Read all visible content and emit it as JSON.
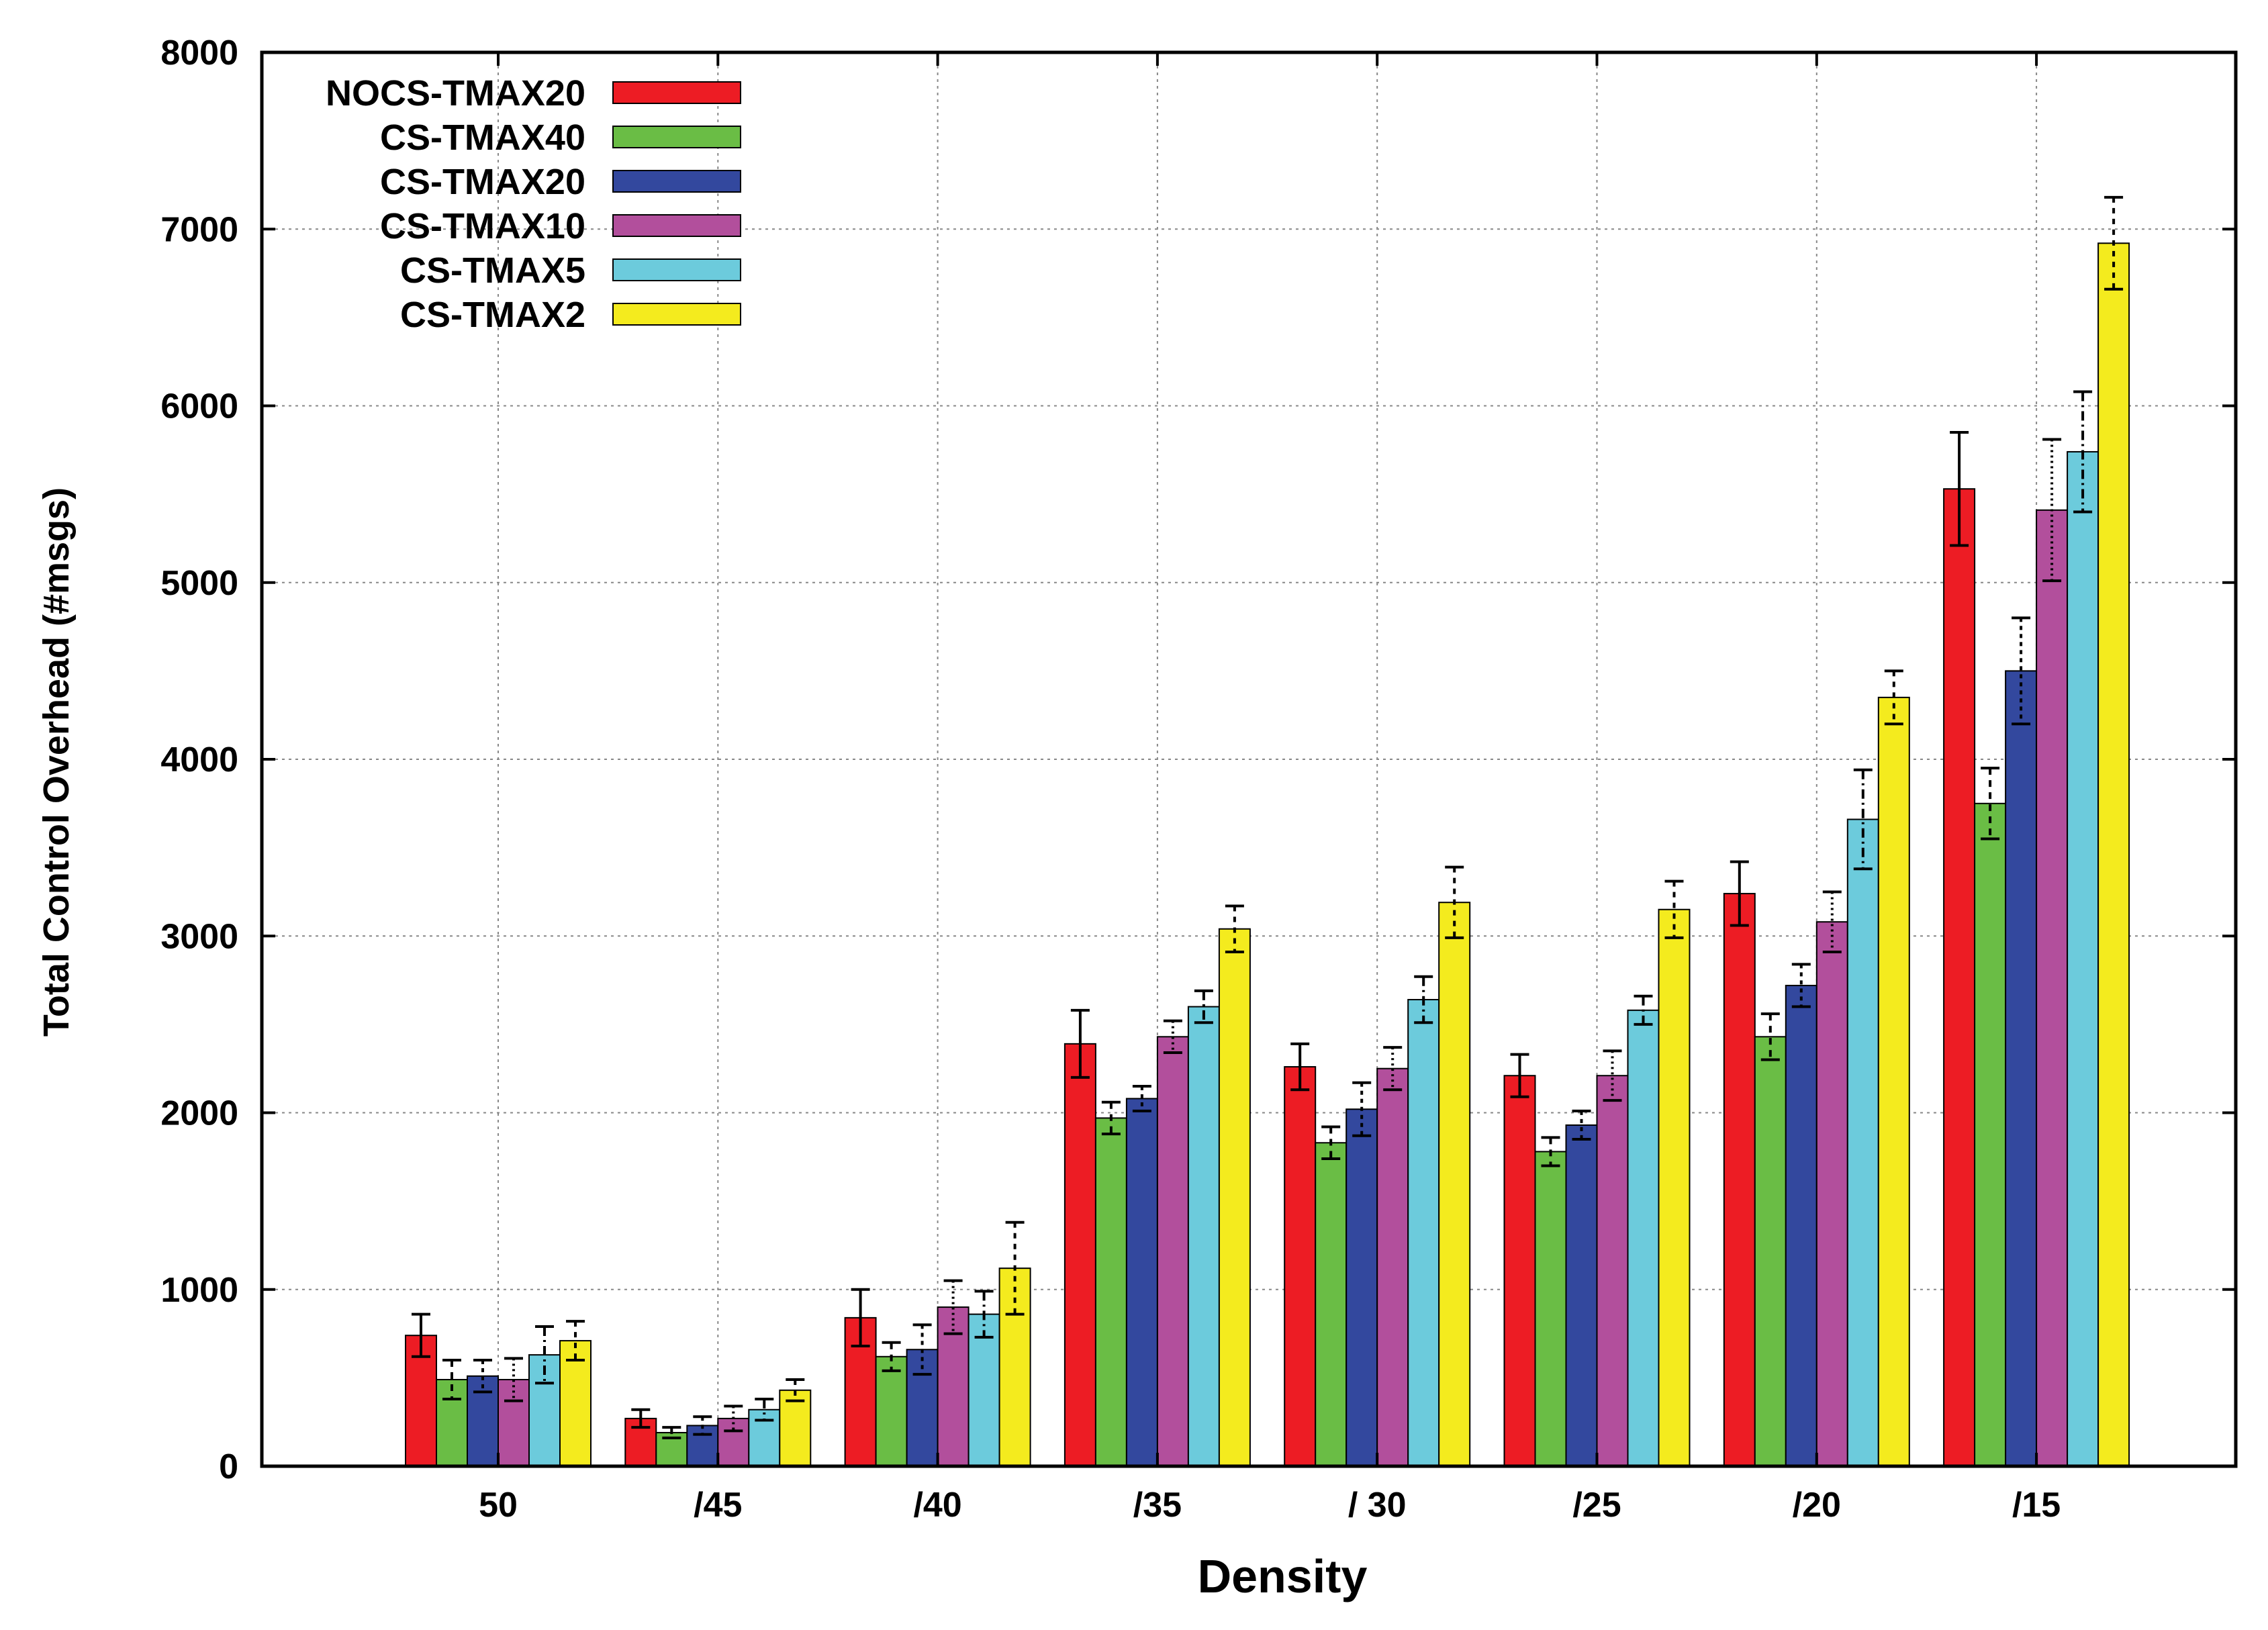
{
  "chart_data": {
    "type": "bar",
    "title": "",
    "xlabel": "Density",
    "ylabel": "Total Control Overhead (#msgs)",
    "ylim": [
      0,
      8000
    ],
    "yticks": [
      0,
      1000,
      2000,
      3000,
      4000,
      5000,
      6000,
      7000,
      8000
    ],
    "ytick_labels": [
      "0",
      "1000",
      "2000",
      "3000",
      "4000",
      "5000",
      "6000",
      "7000",
      "8000"
    ],
    "categories": [
      "50",
      "/45",
      "/40",
      "/35",
      "/ 30",
      "/25",
      "/20",
      "/15"
    ],
    "grid": true,
    "legend_position": "top-left",
    "series": [
      {
        "name": "NOCS-TMAX20",
        "color": "#ed1c24",
        "values": [
          740,
          270,
          840,
          2390,
          2260,
          2210,
          3240,
          5530
        ],
        "errors": [
          120,
          50,
          160,
          190,
          130,
          120,
          180,
          320
        ]
      },
      {
        "name": "CS-TMAX40",
        "color": "#6abd45",
        "values": [
          490,
          190,
          620,
          1970,
          1830,
          1780,
          2430,
          3750
        ],
        "errors": [
          110,
          30,
          80,
          90,
          90,
          80,
          130,
          200
        ]
      },
      {
        "name": "CS-TMAX20",
        "color": "#33489e",
        "values": [
          510,
          230,
          660,
          2080,
          2020,
          1930,
          2720,
          4500
        ],
        "errors": [
          90,
          50,
          140,
          70,
          150,
          80,
          120,
          300
        ]
      },
      {
        "name": "CS-TMAX10",
        "color": "#b24f9c",
        "values": [
          490,
          270,
          900,
          2430,
          2250,
          2210,
          3080,
          5410
        ],
        "errors": [
          120,
          70,
          150,
          90,
          120,
          140,
          170,
          400
        ]
      },
      {
        "name": "CS-TMAX5",
        "color": "#6ccbdc",
        "values": [
          630,
          320,
          860,
          2600,
          2640,
          2580,
          3660,
          5740
        ],
        "errors": [
          160,
          60,
          130,
          90,
          130,
          80,
          280,
          340
        ]
      },
      {
        "name": "CS-TMAX2",
        "color": "#f4eb1e",
        "values": [
          710,
          430,
          1120,
          3040,
          3190,
          3150,
          4350,
          6920
        ],
        "errors": [
          110,
          60,
          260,
          130,
          200,
          160,
          150,
          260
        ]
      }
    ]
  }
}
